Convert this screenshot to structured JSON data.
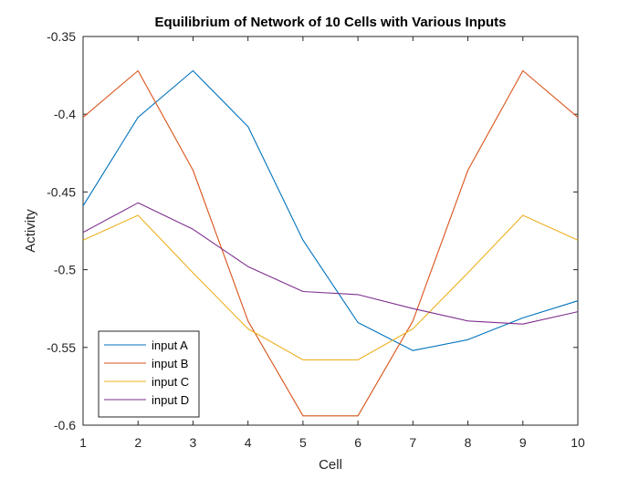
{
  "chart_data": {
    "type": "line",
    "title": "Equilibrium of Network of 10 Cells with Various Inputs",
    "xlabel": "Cell",
    "ylabel": "Activity",
    "xlim": [
      1,
      10
    ],
    "ylim": [
      -0.6,
      -0.35
    ],
    "x": [
      1,
      2,
      3,
      4,
      5,
      6,
      7,
      8,
      9,
      10
    ],
    "xticks": [
      "1",
      "2",
      "3",
      "4",
      "5",
      "6",
      "7",
      "8",
      "9",
      "10"
    ],
    "yticks": [
      "-0.35",
      "-0.4",
      "-0.45",
      "-0.5",
      "-0.55",
      "-0.6"
    ],
    "ytick_values": [
      -0.35,
      -0.4,
      -0.45,
      -0.5,
      -0.55,
      -0.6
    ],
    "grid": false,
    "legend_position": "bottom-left",
    "series": [
      {
        "name": "input A",
        "color": "#0072BD",
        "values": [
          -0.459,
          -0.402,
          -0.372,
          -0.408,
          -0.481,
          -0.534,
          -0.552,
          -0.545,
          -0.531,
          -0.52
        ]
      },
      {
        "name": "input B",
        "color": "#D95319",
        "values": [
          -0.402,
          -0.372,
          -0.436,
          -0.533,
          -0.594,
          -0.594,
          -0.533,
          -0.436,
          -0.372,
          -0.402
        ]
      },
      {
        "name": "input C",
        "color": "#EDB120",
        "values": [
          -0.481,
          -0.465,
          -0.502,
          -0.538,
          -0.558,
          -0.558,
          -0.538,
          -0.502,
          -0.465,
          -0.481
        ]
      },
      {
        "name": "input D",
        "color": "#7E2F8E",
        "values": [
          -0.476,
          -0.457,
          -0.474,
          -0.498,
          -0.514,
          -0.516,
          -0.525,
          -0.533,
          -0.535,
          -0.527
        ]
      }
    ]
  }
}
